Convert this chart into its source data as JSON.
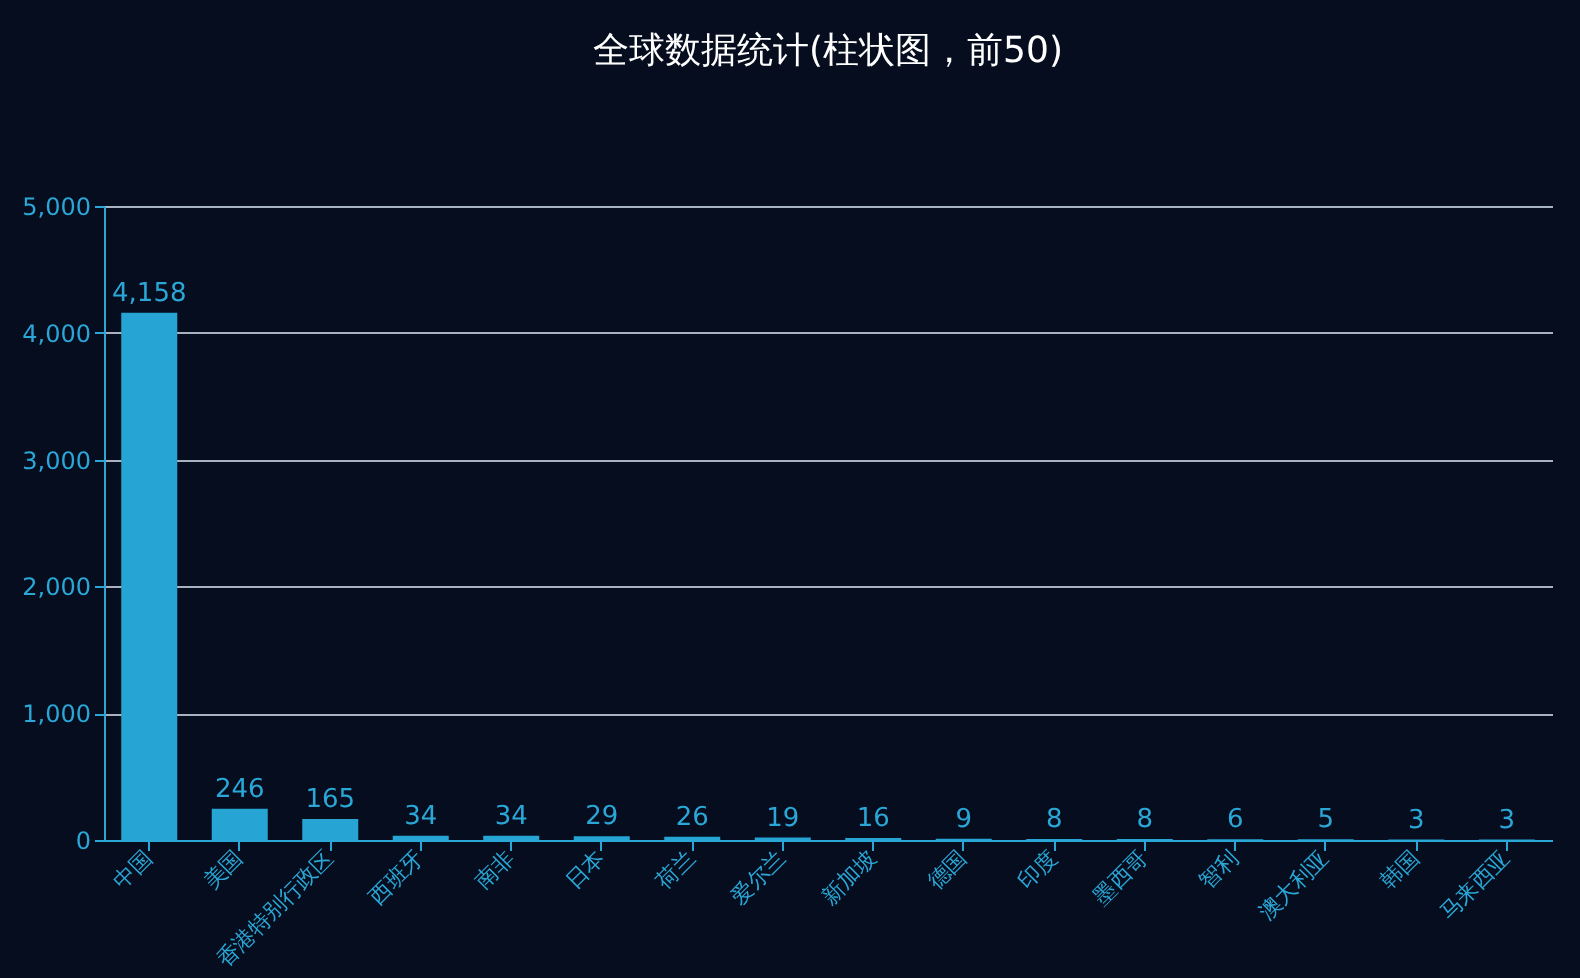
{
  "chart_data": {
    "type": "bar",
    "title": "全球数据统计(柱状图，前50)",
    "categories": [
      "中国",
      "美国",
      "香港特别行政区",
      "西班牙",
      "南非",
      "日本",
      "荷兰",
      "爱尔兰",
      "新加坡",
      "德国",
      "印度",
      "墨西哥",
      "智利",
      "澳大利亚",
      "韩国",
      "马来西亚"
    ],
    "values": [
      4158,
      246,
      165,
      34,
      34,
      29,
      26,
      19,
      16,
      9,
      8,
      8,
      6,
      5,
      3,
      3
    ],
    "value_labels": [
      "4,158",
      "246",
      "165",
      "34",
      "34",
      "29",
      "26",
      "19",
      "16",
      "9",
      "8",
      "8",
      "6",
      "5",
      "3",
      "3"
    ],
    "color": "#26a4d4",
    "ylim": [
      0,
      5000
    ],
    "yticks": [
      0,
      {
        "value": 1000,
        "label": "1,000"
      },
      {
        "value": 2000,
        "label": "2,000"
      },
      {
        "value": 3000,
        "label": "3,000"
      },
      {
        "value": 4000,
        "label": "4,000"
      },
      {
        "value": 5000,
        "label": "5,000"
      }
    ],
    "grid": "y"
  }
}
